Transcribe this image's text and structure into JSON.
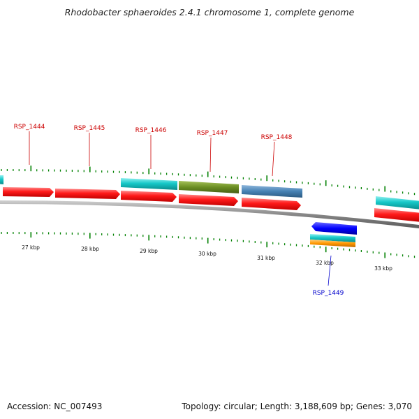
{
  "title": "Rhodobacter sphaeroides 2.4.1 chromosome 1, complete genome",
  "footer": {
    "accession_label": "Accession:",
    "accession": "NC_007493",
    "summary": "Topology: circular; Length: 3,188,609 bp; Genes: 3,070"
  },
  "colors": {
    "cds": "#ff0000",
    "gene": "#00c8c8",
    "olive": "#6b8e23",
    "steel": "#4682b4",
    "blue": "#0000ff",
    "orange": "#ff9900",
    "tick": "#008000",
    "label_red": "#cc0000",
    "label_blue": "#0000cc"
  },
  "kbp_labels": [
    "27 kbp",
    "28 kbp",
    "29 kbp",
    "30 kbp",
    "31 kbp",
    "32 kbp",
    "33 kbp"
  ],
  "gene_labels": [
    {
      "name": "RSP_1444",
      "strand": "top"
    },
    {
      "name": "RSP_1445",
      "strand": "top"
    },
    {
      "name": "RSP_1446",
      "strand": "top"
    },
    {
      "name": "RSP_1447",
      "strand": "top"
    },
    {
      "name": "RSP_1448",
      "strand": "top"
    },
    {
      "name": "RSP_1449",
      "strand": "bottom"
    }
  ]
}
